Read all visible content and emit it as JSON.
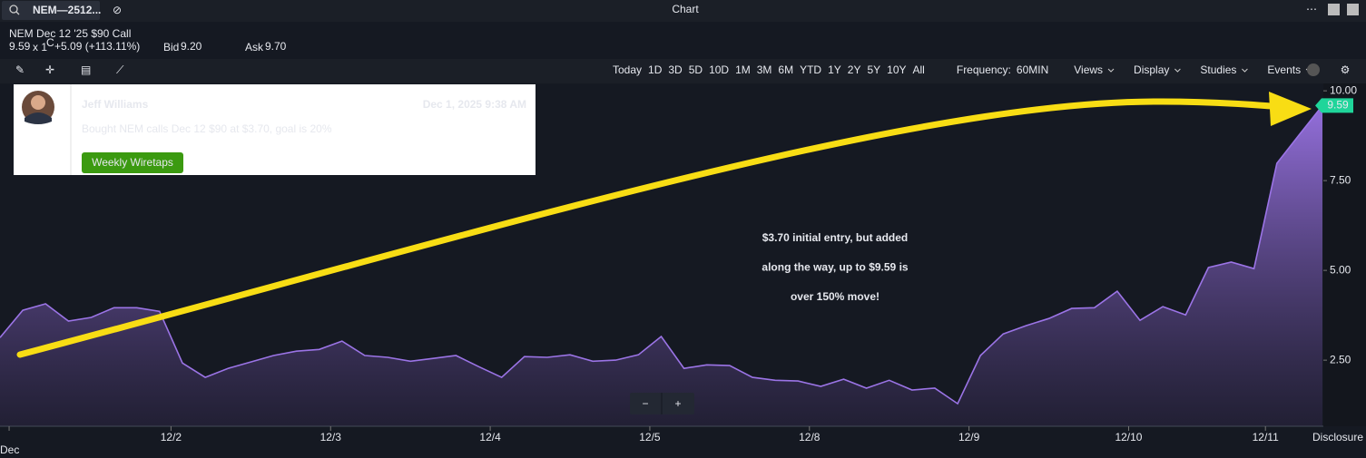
{
  "ui": {
    "symbol": "NEM—2512...",
    "window_title": "Chart",
    "instrument": "NEM Dec 12 '25 $90 Call",
    "last": "9.59",
    "size": "x 1",
    "flag": "C",
    "change": "+5.09 (+113.11%)",
    "bid_label": "Bid",
    "bid": "9.20",
    "ask_label": "Ask",
    "ask": "9.70",
    "ranges": [
      "Today",
      "1D",
      "3D",
      "5D",
      "10D",
      "1M",
      "3M",
      "6M",
      "YTD",
      "1Y",
      "2Y",
      "5Y",
      "10Y",
      "All"
    ],
    "frequency_label": "Frequency:",
    "frequency": "60MIN",
    "menus": [
      "Views",
      "Display",
      "Studies",
      "Events"
    ],
    "comment": {
      "author": "Jeff Williams",
      "time": "Dec 1, 2025 9:38 AM",
      "text": "Bought NEM calls Dec 12 $90 at $3.70, goal is 20%",
      "tag": "Weekly Wiretaps"
    },
    "annotation": [
      "$3.70 initial entry, but added",
      "along the way, up to $9.59 is",
      "over 150% move!"
    ],
    "zoom": [
      "−",
      "+"
    ],
    "disclosure": "Disclosure"
  },
  "chart_data": {
    "type": "area",
    "color": "#9b74e6",
    "x": [
      0,
      1,
      2,
      3,
      4,
      5,
      6,
      7,
      8,
      9,
      10,
      11,
      12,
      13,
      14,
      15,
      16,
      17,
      18,
      19,
      20,
      21,
      22,
      23,
      24,
      25,
      26,
      27,
      28,
      29,
      30,
      31,
      32,
      33,
      34,
      35,
      36,
      37,
      38,
      39,
      40,
      41,
      42,
      43,
      44,
      45,
      46,
      47,
      48,
      49,
      50,
      51,
      52,
      53,
      54,
      55,
      56,
      57,
      58
    ],
    "values": [
      3.13,
      3.89,
      4.07,
      3.59,
      3.69,
      3.96,
      3.96,
      3.86,
      2.42,
      2.02,
      2.27,
      2.45,
      2.63,
      2.75,
      2.8,
      3.03,
      2.63,
      2.58,
      2.47,
      2.55,
      2.63,
      2.32,
      2.02,
      2.6,
      2.58,
      2.65,
      2.47,
      2.5,
      2.65,
      3.16,
      2.27,
      2.37,
      2.35,
      2.02,
      1.94,
      1.92,
      1.77,
      1.97,
      1.72,
      1.94,
      1.67,
      1.72,
      1.29,
      2.63,
      3.23,
      3.46,
      3.66,
      3.94,
      3.96,
      4.42,
      3.61,
      3.99,
      3.76,
      5.08,
      5.23,
      5.05,
      7.98,
      8.79,
      9.59
    ],
    "price_tag": {
      "value": 9.59,
      "label": "9.59"
    },
    "xlim": [
      0,
      58
    ],
    "xticks": [
      {
        "value": 0.4,
        "label": "Dec"
      },
      {
        "value": 7.5,
        "label": "12/2"
      },
      {
        "value": 14.5,
        "label": "12/3"
      },
      {
        "value": 21.5,
        "label": "12/4"
      },
      {
        "value": 28.5,
        "label": "12/5"
      },
      {
        "value": 35.5,
        "label": "12/8"
      },
      {
        "value": 42.5,
        "label": "12/9"
      },
      {
        "value": 49.5,
        "label": "12/10"
      },
      {
        "value": 55.5,
        "label": "12/11"
      }
    ],
    "ylim": [
      0.66,
      10.18
    ],
    "yticks": [
      {
        "value": 10,
        "label": "10.00"
      },
      {
        "value": 7.5,
        "label": "7.50"
      },
      {
        "value": 5,
        "label": "5.00"
      },
      {
        "value": 2.5,
        "label": "2.50"
      }
    ]
  }
}
